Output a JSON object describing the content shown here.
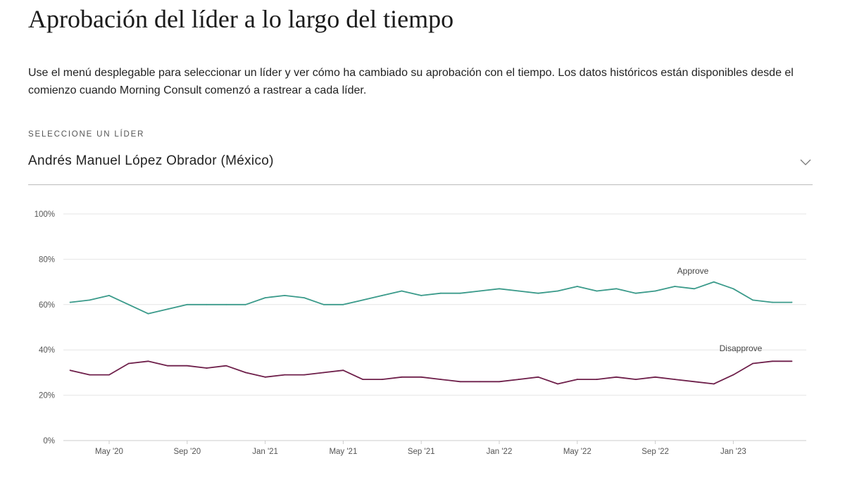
{
  "header": {
    "title": "Aprobación del líder a lo largo del tiempo",
    "description": "Use el menú desplegable para seleccionar un líder y ver cómo ha cambiado su aprobación con el tiempo. Los datos históricos están disponibles desde el comienzo cuando Morning Consult comenzó a rastrear a cada líder."
  },
  "selector": {
    "label": "SELECCIONE UN LÍDER",
    "value": "Andrés Manuel López Obrador (México)",
    "icon": "chevron-down-icon"
  },
  "chart_data": {
    "type": "line",
    "title": "",
    "xlabel": "",
    "ylabel": "",
    "ylim": [
      0,
      100
    ],
    "grid": true,
    "y_ticks": [
      "0%",
      "20%",
      "40%",
      "60%",
      "80%",
      "100%"
    ],
    "y_tick_values": [
      0,
      20,
      40,
      60,
      80,
      100
    ],
    "x_ticks": [
      "May '20",
      "Sep '20",
      "Jan '21",
      "May '21",
      "Sep '21",
      "Jan '22",
      "May '22",
      "Sep '22",
      "Jan '23"
    ],
    "x_tick_months": [
      "2020-05",
      "2020-09",
      "2021-01",
      "2021-05",
      "2021-09",
      "2022-01",
      "2022-05",
      "2022-09",
      "2023-01"
    ],
    "x": [
      "2020-03",
      "2020-04",
      "2020-05",
      "2020-06",
      "2020-07",
      "2020-08",
      "2020-09",
      "2020-10",
      "2020-11",
      "2020-12",
      "2021-01",
      "2021-02",
      "2021-03",
      "2021-04",
      "2021-05",
      "2021-06",
      "2021-07",
      "2021-08",
      "2021-09",
      "2021-10",
      "2021-11",
      "2021-12",
      "2022-01",
      "2022-02",
      "2022-03",
      "2022-04",
      "2022-05",
      "2022-06",
      "2022-07",
      "2022-08",
      "2022-09",
      "2022-10",
      "2022-11",
      "2022-12",
      "2023-01",
      "2023-02",
      "2023-03",
      "2023-04"
    ],
    "series": [
      {
        "name": "Approve",
        "color": "#3a9a8a",
        "values": [
          61,
          62,
          64,
          60,
          56,
          58,
          60,
          60,
          60,
          60,
          63,
          64,
          63,
          60,
          60,
          62,
          64,
          66,
          64,
          65,
          65,
          66,
          67,
          66,
          65,
          66,
          68,
          66,
          67,
          65,
          66,
          68,
          67,
          70,
          67,
          62,
          61,
          61
        ]
      },
      {
        "name": "Disapprove",
        "color": "#6e1f4a",
        "values": [
          31,
          29,
          29,
          34,
          35,
          33,
          33,
          32,
          33,
          30,
          28,
          29,
          29,
          30,
          31,
          27,
          27,
          28,
          28,
          27,
          26,
          26,
          26,
          27,
          28,
          25,
          27,
          27,
          28,
          27,
          28,
          27,
          26,
          25,
          29,
          34,
          35,
          35
        ]
      }
    ]
  }
}
